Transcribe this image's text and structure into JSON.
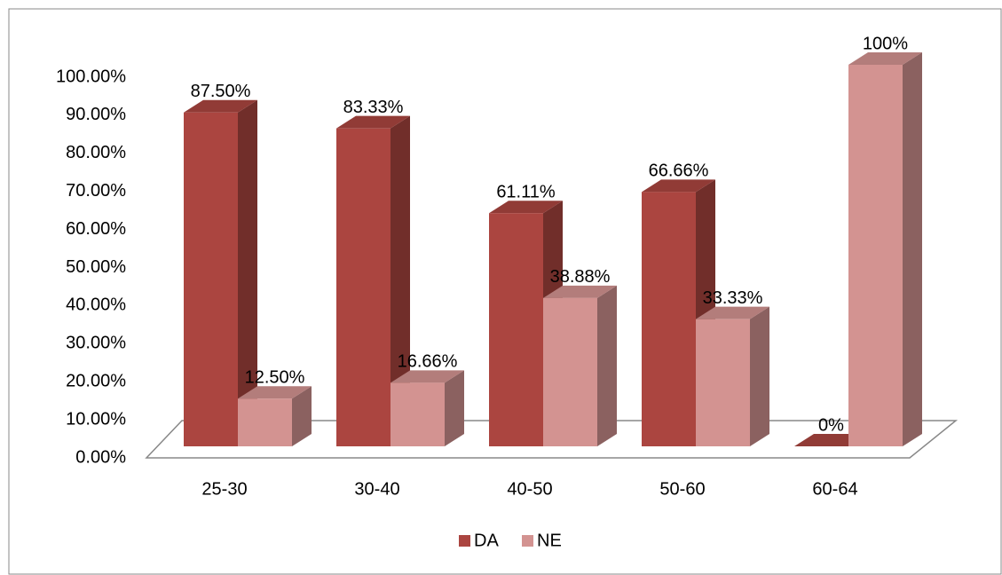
{
  "chart_data": {
    "type": "bar3d",
    "categories": [
      "25-30",
      "30-40",
      "40-50",
      "50-60",
      "60-64"
    ],
    "series": [
      {
        "name": "DA",
        "color": "#ab4540",
        "values": [
          87.5,
          83.33,
          61.11,
          66.66,
          0
        ],
        "value_labels": [
          "87.50%",
          "83.33%",
          "61.11%",
          "66.66%",
          "0%"
        ]
      },
      {
        "name": "NE",
        "color": "#d39391",
        "values": [
          12.5,
          16.66,
          38.88,
          33.33,
          100
        ],
        "value_labels": [
          "12.50%",
          "16.66%",
          "38.88%",
          "33.33%",
          "100%"
        ]
      }
    ],
    "ylim": [
      0,
      100
    ],
    "yticks": [
      {
        "value": 0,
        "label": "0.00%"
      },
      {
        "value": 10,
        "label": "10.00%"
      },
      {
        "value": 20,
        "label": "20.00%"
      },
      {
        "value": 30,
        "label": "30.00%"
      },
      {
        "value": 40,
        "label": "40.00%"
      },
      {
        "value": 50,
        "label": "50.00%"
      },
      {
        "value": 60,
        "label": "60.00%"
      },
      {
        "value": 70,
        "label": "70.00%"
      },
      {
        "value": 80,
        "label": "80.00%"
      },
      {
        "value": 90,
        "label": "90.00%"
      },
      {
        "value": 100,
        "label": "100.00%"
      }
    ],
    "legend": "bottom"
  }
}
